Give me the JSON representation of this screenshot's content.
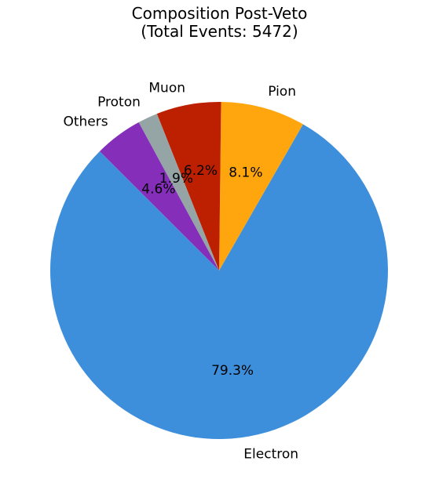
{
  "chart_data": {
    "type": "pie",
    "title": "Composition Post-Veto",
    "subtitle": "(Total Events: 5472)",
    "start_angle_deg": 135,
    "direction": "counterclockwise",
    "slices": [
      {
        "label": "Electron",
        "value": 79.3,
        "pct_label": "79.3%",
        "color": "#3e8fdb"
      },
      {
        "label": "Pion",
        "value": 8.1,
        "pct_label": "8.1%",
        "color": "#ffa60f"
      },
      {
        "label": "Muon",
        "value": 6.2,
        "pct_label": "6.2%",
        "color": "#bd2000"
      },
      {
        "label": "Proton",
        "value": 1.9,
        "pct_label": "1.9%",
        "color": "#95a5a6"
      },
      {
        "label": "Others",
        "value": 4.6,
        "pct_label": "4.6%",
        "color": "#842eba"
      }
    ]
  }
}
